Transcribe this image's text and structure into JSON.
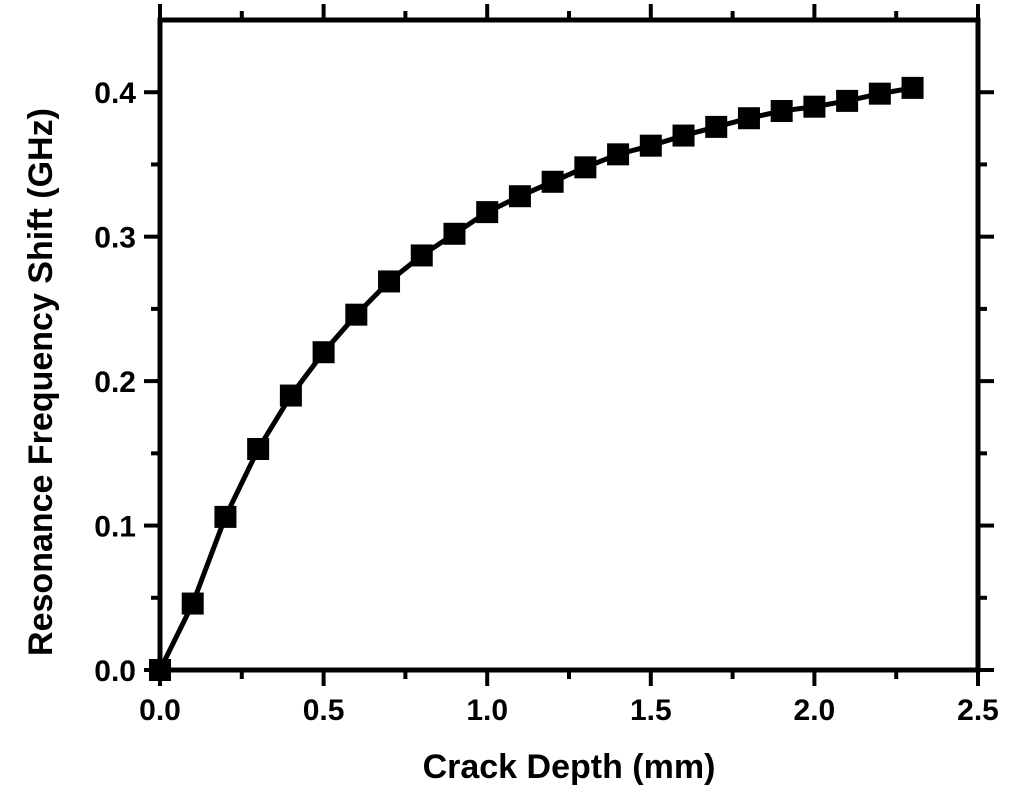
{
  "chart_data": {
    "type": "line",
    "title": "",
    "xlabel": "Crack Depth (mm)",
    "ylabel": "Resonance Frequency Shift (GHz)",
    "xlim": [
      0.0,
      2.5
    ],
    "ylim": [
      0.0,
      0.45
    ],
    "xticks": [
      0.0,
      0.5,
      1.0,
      1.5,
      2.0,
      2.5
    ],
    "xtick_labels": [
      "0.0",
      "0.5",
      "1.0",
      "1.5",
      "2.0",
      "2.5"
    ],
    "yticks": [
      0.0,
      0.1,
      0.2,
      0.3,
      0.4
    ],
    "ytick_labels": [
      "0.0",
      "0.1",
      "0.2",
      "0.3",
      "0.4"
    ],
    "grid": false,
    "marker": "square",
    "color": "#000000",
    "series": [
      {
        "x": [
          0.0,
          0.1,
          0.2,
          0.3,
          0.4,
          0.5,
          0.6,
          0.7,
          0.8,
          0.9,
          1.0,
          1.1,
          1.2,
          1.3,
          1.4,
          1.5,
          1.6,
          1.7,
          1.8,
          1.9,
          2.0,
          2.1,
          2.2,
          2.3
        ],
        "y": [
          0.0,
          0.046,
          0.106,
          0.153,
          0.19,
          0.22,
          0.246,
          0.269,
          0.287,
          0.302,
          0.317,
          0.328,
          0.338,
          0.348,
          0.357,
          0.363,
          0.37,
          0.376,
          0.382,
          0.387,
          0.39,
          0.394,
          0.399,
          0.403
        ]
      }
    ]
  }
}
